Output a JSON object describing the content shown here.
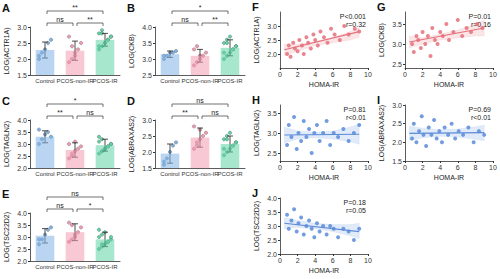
{
  "chart_data": [
    {
      "type": "bar",
      "title": "A",
      "y_label": "LOG(ACTR1A)",
      "categories": [
        "Control",
        "PCOS-non-IR",
        "PCOS-IR"
      ],
      "values": [
        2.28,
        2.26,
        2.6
      ],
      "errors": [
        0.25,
        0.3,
        0.2
      ],
      "colors": [
        "#7fb3e6",
        "#f29bb0",
        "#5fd3a6"
      ],
      "points": [
        [
          2.0,
          2.2,
          2.3,
          2.5,
          2.6,
          2.1
        ],
        [
          1.9,
          2.0,
          2.2,
          2.3,
          2.5,
          2.7,
          2.4,
          2.1
        ],
        [
          2.3,
          2.4,
          2.5,
          2.6,
          2.7,
          2.8,
          2.9,
          2.5,
          2.6,
          2.7,
          2.4,
          2.8
        ]
      ],
      "ylim": [
        1.5,
        3
      ],
      "yticks": [
        1.5,
        {
          "value": 2,
          "label": "2.0"
        },
        2.5,
        {
          "value": 3,
          "label": "3.0"
        }
      ],
      "comparisons": [
        {
          "groups": [
            "Control",
            "PCOS-non-IR"
          ],
          "label": "ns"
        },
        {
          "groups": [
            "PCOS-non-IR",
            "PCOS-IR"
          ],
          "label": "**"
        },
        {
          "groups": [
            "Control",
            "PCOS-IR"
          ],
          "label": "**"
        }
      ]
    },
    {
      "type": "bar",
      "title": "B",
      "y_label": "LOG(CKB)",
      "categories": [
        "Control",
        "PCOS-non-IR",
        "PCOS-IR"
      ],
      "values": [
        3.15,
        3.1,
        3.35
      ],
      "errors": [
        0.1,
        0.2,
        0.25
      ],
      "colors": [
        "#7fb3e6",
        "#f29bb0",
        "#5fd3a6"
      ],
      "points": [
        [
          3.0,
          3.1,
          3.2,
          3.2,
          3.25,
          3.1
        ],
        [
          2.8,
          2.9,
          3.0,
          3.1,
          3.2,
          3.3,
          3.4,
          3.1
        ],
        [
          3.0,
          3.1,
          3.2,
          3.3,
          3.4,
          3.5,
          3.6,
          3.7,
          3.3,
          3.4,
          3.2,
          3.5
        ]
      ],
      "ylim": [
        2.5,
        4
      ],
      "yticks": [
        2.5,
        {
          "value": 3,
          "label": "3.0"
        },
        3.5,
        {
          "value": 4,
          "label": "4.0"
        }
      ],
      "comparisons": [
        {
          "groups": [
            "Control",
            "PCOS-non-IR"
          ],
          "label": "ns"
        },
        {
          "groups": [
            "PCOS-non-IR",
            "PCOS-IR"
          ],
          "label": "**"
        },
        {
          "groups": [
            "Control",
            "PCOS-IR"
          ],
          "label": "*"
        }
      ]
    },
    {
      "type": "bar",
      "title": "C",
      "y_label": "LOG(TAGLN2)",
      "categories": [
        "Control",
        "PCOS-non-IR",
        "PCOS-IR"
      ],
      "values": [
        3.3,
        2.75,
        2.95
      ],
      "errors": [
        0.25,
        0.3,
        0.25
      ],
      "colors": [
        "#7fb3e6",
        "#f29bb0",
        "#5fd3a6"
      ],
      "points": [
        [
          3.0,
          3.2,
          3.4,
          3.5,
          3.3,
          3.6
        ],
        [
          2.4,
          2.5,
          2.7,
          2.8,
          2.9,
          3.0,
          2.6,
          3.1
        ],
        [
          2.6,
          2.7,
          2.8,
          2.9,
          3.0,
          3.1,
          3.2,
          2.8,
          2.9,
          3.0,
          3.3,
          2.7
        ]
      ],
      "ylim": [
        2,
        4
      ],
      "yticks": [
        {
          "value": 2,
          "label": "2.0"
        },
        2.5,
        {
          "value": 3,
          "label": "3.0"
        },
        3.5,
        {
          "value": 4,
          "label": "4.0"
        }
      ],
      "comparisons": [
        {
          "groups": [
            "Control",
            "PCOS-non-IR"
          ],
          "label": "**"
        },
        {
          "groups": [
            "PCOS-non-IR",
            "PCOS-IR"
          ],
          "label": "ns"
        },
        {
          "groups": [
            "Control",
            "PCOS-IR"
          ],
          "label": "*"
        }
      ]
    },
    {
      "type": "bar",
      "title": "D",
      "y_label": "LOG(ABRAXAS2)",
      "categories": [
        "Control",
        "PCOS-non-IR",
        "PCOS-IR"
      ],
      "values": [
        1.95,
        2.45,
        2.25
      ],
      "errors": [
        0.3,
        0.3,
        0.25
      ],
      "colors": [
        "#7fb3e6",
        "#f29bb0",
        "#5fd3a6"
      ],
      "points": [
        [
          1.6,
          1.8,
          2.0,
          2.2,
          2.3,
          1.7
        ],
        [
          2.1,
          2.2,
          2.4,
          2.5,
          2.6,
          2.8,
          2.3,
          2.7
        ],
        [
          1.9,
          2.0,
          2.1,
          2.2,
          2.3,
          2.4,
          2.5,
          2.6,
          2.2,
          2.3,
          2.1,
          2.4
        ]
      ],
      "ylim": [
        1.5,
        3
      ],
      "yticks": [
        1.5,
        {
          "value": 2,
          "label": "2.0"
        },
        2.5,
        {
          "value": 3,
          "label": "3.0"
        }
      ],
      "comparisons": [
        {
          "groups": [
            "Control",
            "PCOS-non-IR"
          ],
          "label": "**"
        },
        {
          "groups": [
            "PCOS-non-IR",
            "PCOS-IR"
          ],
          "label": "ns"
        },
        {
          "groups": [
            "Control",
            "PCOS-IR"
          ],
          "label": "ns"
        }
      ]
    },
    {
      "type": "bar",
      "title": "E",
      "y_label": "LOG(TSC22D2)",
      "categories": [
        "Control",
        "PCOS-non-IR",
        "PCOS-IR"
      ],
      "values": [
        3.05,
        3.2,
        2.9
      ],
      "errors": [
        0.3,
        0.35,
        0.3
      ],
      "colors": [
        "#7fb3e6",
        "#f29bb0",
        "#5fd3a6"
      ],
      "points": [
        [
          2.7,
          2.9,
          3.1,
          3.3,
          3.4,
          2.9
        ],
        [
          2.8,
          2.9,
          3.0,
          3.2,
          3.4,
          3.6,
          3.5,
          3.1
        ],
        [
          2.5,
          2.6,
          2.7,
          2.8,
          2.9,
          3.0,
          3.1,
          3.2,
          2.8,
          3.0,
          3.3,
          2.7
        ]
      ],
      "ylim": [
        2,
        4
      ],
      "yticks": [
        {
          "value": 2,
          "label": "2.0"
        },
        2.5,
        {
          "value": 3,
          "label": "3.0"
        },
        3.5,
        {
          "value": 4,
          "label": "4.0"
        }
      ],
      "comparisons": [
        {
          "groups": [
            "Control",
            "PCOS-non-IR"
          ],
          "label": "ns"
        },
        {
          "groups": [
            "PCOS-non-IR",
            "PCOS-IR"
          ],
          "label": "*"
        },
        {
          "groups": [
            "Control",
            "PCOS-IR"
          ],
          "label": "ns"
        }
      ]
    },
    {
      "type": "scatter",
      "title": "F",
      "x_label": "HOMA-IR",
      "y_label": "LOG(ACTR1A)",
      "color": "#e5707a",
      "annotations": [
        "P<0.001",
        "r=0.32"
      ],
      "points": [
        [
          0.8,
          2.0
        ],
        [
          1.0,
          2.3
        ],
        [
          1.2,
          1.9
        ],
        [
          1.5,
          2.4
        ],
        [
          1.7,
          2.2
        ],
        [
          2.0,
          2.1
        ],
        [
          2.2,
          2.5
        ],
        [
          2.5,
          2.3
        ],
        [
          2.7,
          2.0
        ],
        [
          3.0,
          2.6
        ],
        [
          3.2,
          2.4
        ],
        [
          3.5,
          2.2
        ],
        [
          3.8,
          2.7
        ],
        [
          4.0,
          2.5
        ],
        [
          4.3,
          2.3
        ],
        [
          4.6,
          2.8
        ],
        [
          5.0,
          2.6
        ],
        [
          5.4,
          2.4
        ],
        [
          5.8,
          2.9
        ],
        [
          6.2,
          2.7
        ],
        [
          6.8,
          2.5
        ],
        [
          7.3,
          3.0
        ],
        [
          7.8,
          2.7
        ],
        [
          8.5,
          2.9
        ],
        [
          9.0,
          2.8
        ]
      ],
      "fit": {
        "x": [
          0.5,
          9
        ],
        "y": [
          2.15,
          2.8
        ]
      },
      "band": {
        "x": [
          0.5,
          2,
          4,
          6,
          8,
          9
        ],
        "lower": [
          1.95,
          2.1,
          2.3,
          2.4,
          2.5,
          2.6
        ],
        "upper": [
          2.35,
          2.35,
          2.45,
          2.6,
          2.8,
          2.95
        ]
      },
      "xlim": [
        0,
        10
      ],
      "xticks": [
        0,
        2,
        4,
        6,
        8,
        10
      ],
      "ylim": [
        1.5,
        3.5
      ],
      "yticks": [
        {
          "value": 2,
          "label": "2.0"
        },
        2.5,
        {
          "value": 3,
          "label": "3.0"
        }
      ]
    },
    {
      "type": "scatter",
      "title": "G",
      "x_label": "HOMA-IR",
      "y_label": "LOG(CKB)",
      "color": "#e5707a",
      "annotations": [
        "P=0.01",
        "r=0.16"
      ],
      "points": [
        [
          0.8,
          3.0
        ],
        [
          1.0,
          2.8
        ],
        [
          1.3,
          3.2
        ],
        [
          1.5,
          3.1
        ],
        [
          1.8,
          2.9
        ],
        [
          2.0,
          3.3
        ],
        [
          2.3,
          3.0
        ],
        [
          2.6,
          3.2
        ],
        [
          2.9,
          2.7
        ],
        [
          3.1,
          3.4
        ],
        [
          3.4,
          3.1
        ],
        [
          3.7,
          3.0
        ],
        [
          4.0,
          3.3
        ],
        [
          4.3,
          3.2
        ],
        [
          4.7,
          3.5
        ],
        [
          5.0,
          3.1
        ],
        [
          5.5,
          3.3
        ],
        [
          6.0,
          3.6
        ],
        [
          6.5,
          3.2
        ],
        [
          7.0,
          3.4
        ],
        [
          7.5,
          3.3
        ],
        [
          8.2,
          3.5
        ],
        [
          8.8,
          3.4
        ]
      ],
      "fit": {
        "x": [
          0.5,
          9
        ],
        "y": [
          3.05,
          3.4
        ]
      },
      "band": {
        "x": [
          0.5,
          2,
          4,
          6,
          8,
          9
        ],
        "lower": [
          2.9,
          3.0,
          3.1,
          3.15,
          3.2,
          3.2
        ],
        "upper": [
          3.2,
          3.15,
          3.25,
          3.35,
          3.5,
          3.6
        ]
      },
      "xlim": [
        0,
        10
      ],
      "xticks": [
        0,
        2,
        4,
        6,
        8,
        10
      ],
      "ylim": [
        2.4,
        3.8
      ],
      "yticks": [
        2.5,
        {
          "value": 3,
          "label": "3.0"
        },
        3.5
      ]
    },
    {
      "type": "scatter",
      "title": "H",
      "x_label": "HOMA-IR",
      "y_label": "LOG(TAGLN2)",
      "color": "#5b8bd9",
      "annotations": [
        "P=0.81",
        "r<0.01"
      ],
      "points": [
        [
          0.8,
          2.7
        ],
        [
          1.0,
          3.2
        ],
        [
          1.3,
          2.9
        ],
        [
          1.6,
          3.4
        ],
        [
          1.9,
          2.6
        ],
        [
          2.1,
          3.0
        ],
        [
          2.4,
          2.8
        ],
        [
          2.7,
          3.3
        ],
        [
          3.0,
          2.9
        ],
        [
          3.3,
          3.1
        ],
        [
          3.6,
          2.5
        ],
        [
          3.9,
          3.0
        ],
        [
          4.2,
          3.2
        ],
        [
          4.5,
          2.8
        ],
        [
          4.9,
          3.0
        ],
        [
          5.3,
          3.3
        ],
        [
          5.7,
          2.7
        ],
        [
          6.1,
          3.0
        ],
        [
          6.6,
          2.9
        ],
        [
          7.2,
          3.1
        ],
        [
          7.8,
          2.8
        ],
        [
          8.4,
          3.0
        ],
        [
          9.0,
          3.2
        ]
      ],
      "fit": {
        "x": [
          0.5,
          9
        ],
        "y": [
          2.95,
          2.97
        ]
      },
      "band": {
        "x": [
          0.5,
          2,
          4,
          6,
          8,
          9
        ],
        "lower": [
          2.75,
          2.85,
          2.88,
          2.85,
          2.78,
          2.72
        ],
        "upper": [
          3.15,
          3.05,
          3.02,
          3.05,
          3.15,
          3.22
        ]
      },
      "xlim": [
        0,
        10
      ],
      "xticks": [
        0,
        2,
        4,
        6,
        8,
        10
      ],
      "ylim": [
        2.3,
        3.7
      ],
      "yticks": [
        2.5,
        {
          "value": 3,
          "label": "3.0"
        },
        3.5
      ]
    },
    {
      "type": "scatter",
      "title": "I",
      "x_label": "HOMA-IR",
      "y_label": "LOG(ABRAXAS2)",
      "color": "#5b8bd9",
      "annotations": [
        "P=0.69",
        "r<0.01"
      ],
      "points": [
        [
          0.8,
          2.1
        ],
        [
          1.0,
          2.5
        ],
        [
          1.3,
          2.0
        ],
        [
          1.6,
          2.3
        ],
        [
          1.9,
          2.7
        ],
        [
          2.1,
          2.2
        ],
        [
          2.4,
          1.9
        ],
        [
          2.7,
          2.4
        ],
        [
          3.0,
          2.2
        ],
        [
          3.3,
          2.6
        ],
        [
          3.6,
          2.1
        ],
        [
          3.9,
          2.3
        ],
        [
          4.2,
          2.0
        ],
        [
          4.5,
          2.4
        ],
        [
          4.9,
          2.2
        ],
        [
          5.3,
          2.5
        ],
        [
          5.7,
          2.1
        ],
        [
          6.1,
          2.3
        ],
        [
          6.6,
          2.2
        ],
        [
          7.2,
          2.4
        ],
        [
          7.8,
          2.0
        ],
        [
          8.4,
          2.3
        ],
        [
          9.0,
          2.2
        ]
      ],
      "fit": {
        "x": [
          0.5,
          9
        ],
        "y": [
          2.24,
          2.26
        ]
      },
      "band": {
        "x": [
          0.5,
          2,
          4,
          6,
          8,
          9
        ],
        "lower": [
          2.05,
          2.12,
          2.16,
          2.14,
          2.08,
          2.04
        ],
        "upper": [
          2.43,
          2.38,
          2.34,
          2.36,
          2.42,
          2.46
        ]
      },
      "xlim": [
        0,
        10
      ],
      "xticks": [
        0,
        2,
        4,
        6,
        8,
        10
      ],
      "ylim": [
        1.5,
        3
      ],
      "yticks": [
        1.5,
        {
          "value": 2,
          "label": "2.0"
        },
        2.5,
        {
          "value": 3,
          "label": "3.0"
        }
      ]
    },
    {
      "type": "scatter",
      "title": "J",
      "x_label": "HOMA-IR",
      "y_label": "LOG(TSC22D2)",
      "color": "#5b8bd9",
      "annotations": [
        "P=0.18",
        "r=0.05"
      ],
      "points": [
        [
          0.8,
          3.4
        ],
        [
          1.0,
          2.9
        ],
        [
          1.3,
          3.2
        ],
        [
          1.6,
          3.6
        ],
        [
          1.9,
          2.8
        ],
        [
          2.1,
          3.1
        ],
        [
          2.4,
          3.3
        ],
        [
          2.7,
          2.7
        ],
        [
          3.0,
          3.0
        ],
        [
          3.3,
          3.2
        ],
        [
          3.6,
          2.9
        ],
        [
          3.9,
          2.6
        ],
        [
          4.2,
          3.1
        ],
        [
          4.5,
          2.8
        ],
        [
          4.9,
          3.0
        ],
        [
          5.3,
          2.7
        ],
        [
          5.7,
          3.0
        ],
        [
          6.1,
          2.9
        ],
        [
          6.6,
          2.6
        ],
        [
          7.2,
          2.9
        ],
        [
          7.8,
          2.8
        ],
        [
          8.4,
          2.5
        ],
        [
          9.0,
          2.9
        ]
      ],
      "fit": {
        "x": [
          0.5,
          9
        ],
        "y": [
          3.1,
          2.8
        ]
      },
      "band": {
        "x": [
          0.5,
          2,
          4,
          6,
          8,
          9
        ],
        "lower": [
          2.9,
          2.95,
          2.9,
          2.8,
          2.65,
          2.55
        ],
        "upper": [
          3.3,
          3.2,
          3.1,
          3.05,
          3.05,
          3.1
        ]
      },
      "xlim": [
        0,
        10
      ],
      "xticks": [
        0,
        2,
        4,
        6,
        8,
        10
      ],
      "ylim": [
        2,
        4
      ],
      "yticks": [
        {
          "value": 2,
          "label": "2.0"
        },
        2.5,
        {
          "value": 3,
          "label": "3.0"
        },
        3.5,
        {
          "value": 4,
          "label": "4.0"
        }
      ]
    }
  ]
}
